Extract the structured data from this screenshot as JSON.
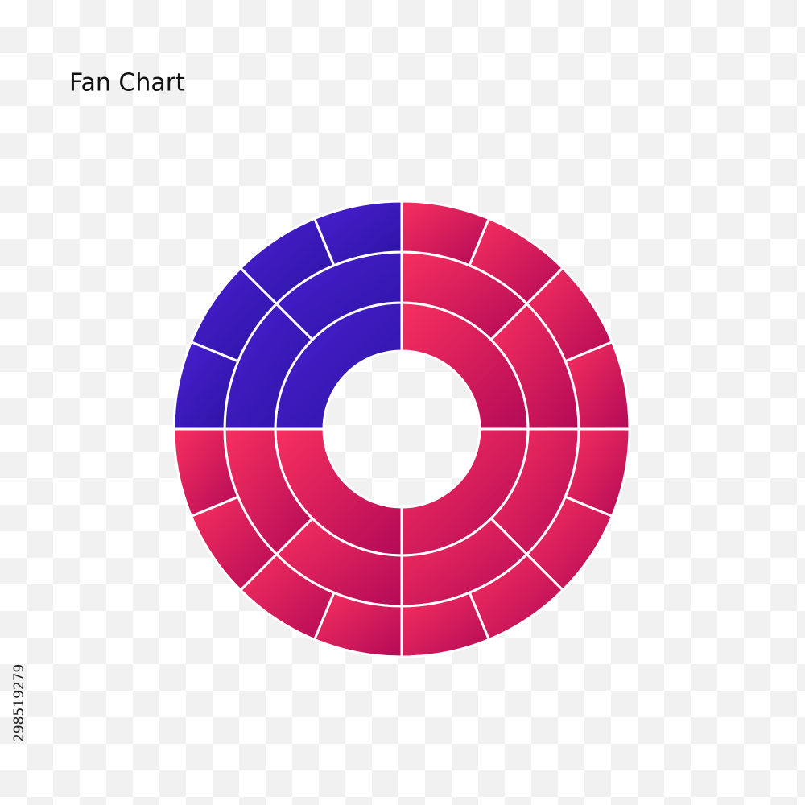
{
  "title": "Fan Chart",
  "image_id": "298519279"
}
